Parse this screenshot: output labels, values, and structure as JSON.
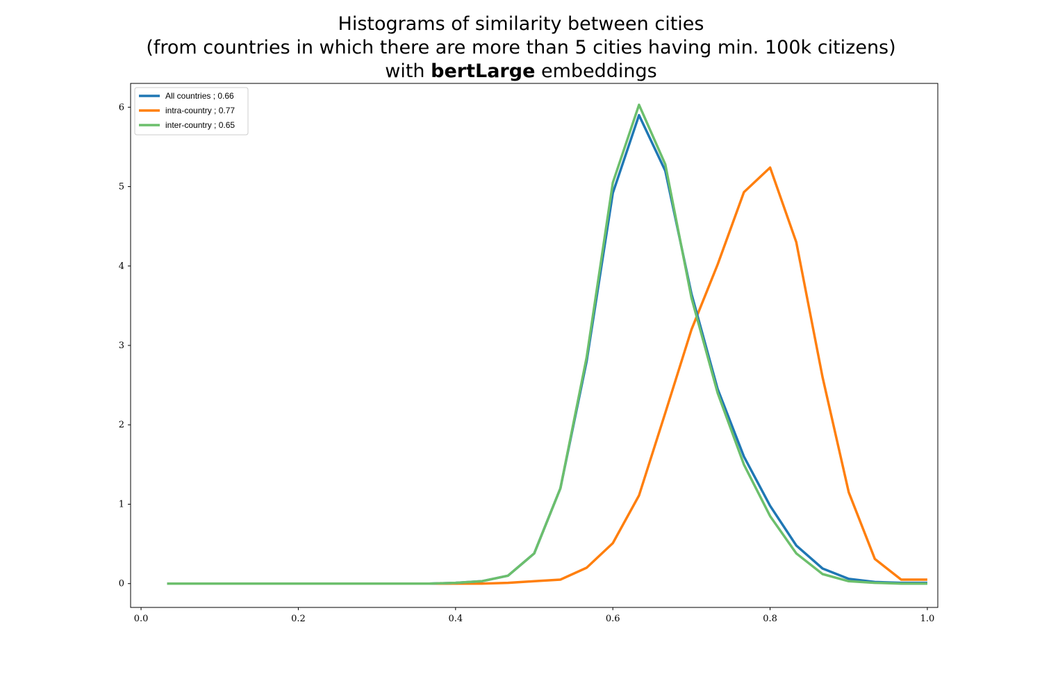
{
  "title": {
    "line1": "Histograms of similarity between cities",
    "line2": "(from countries in which there are more than 5 cities having min. 100k citizens)",
    "line3_prefix": "with ",
    "line3_bold": "bertLarge",
    "line3_suffix": " embeddings"
  },
  "chart_data": {
    "type": "line",
    "xlabel": "",
    "ylabel": "",
    "xlim": [
      -0.0133,
      1.0133
    ],
    "ylim": [
      -0.3,
      6.3
    ],
    "xticks": [
      0.0,
      0.2,
      0.4,
      0.6,
      0.8,
      1.0
    ],
    "xtick_labels": [
      "0.0",
      "0.2",
      "0.4",
      "0.6",
      "0.8",
      "1.0"
    ],
    "yticks": [
      0,
      1,
      2,
      3,
      4,
      5,
      6
    ],
    "ytick_labels": [
      "0",
      "1",
      "2",
      "3",
      "4",
      "5",
      "6"
    ],
    "grid": false,
    "legend_position": "top-left",
    "x": [
      0.0333,
      0.0667,
      0.1,
      0.1333,
      0.1667,
      0.2,
      0.2333,
      0.2667,
      0.3,
      0.3333,
      0.3667,
      0.4,
      0.4333,
      0.4667,
      0.5,
      0.5333,
      0.5667,
      0.6,
      0.6333,
      0.6667,
      0.7,
      0.7333,
      0.7667,
      0.8,
      0.8333,
      0.8667,
      0.9,
      0.9333,
      0.9667,
      1.0
    ],
    "series": [
      {
        "name": "All countries ; 0.66",
        "color": "#1f77b4",
        "values": [
          0,
          0,
          0,
          0,
          0,
          0,
          0,
          0,
          0,
          0,
          0,
          0.01,
          0.03,
          0.1,
          0.38,
          1.2,
          2.8,
          4.92,
          5.9,
          5.2,
          3.65,
          2.45,
          1.6,
          0.98,
          0.48,
          0.19,
          0.06,
          0.02,
          0.01,
          0.01
        ]
      },
      {
        "name": "intra-country ; 0.77",
        "color": "#ff7f0e",
        "values": [
          0,
          0,
          0,
          0,
          0,
          0,
          0,
          0,
          0,
          0,
          0,
          0,
          0,
          0.01,
          0.03,
          0.05,
          0.2,
          0.51,
          1.11,
          2.15,
          3.2,
          4.02,
          4.93,
          5.24,
          4.3,
          2.6,
          1.15,
          0.31,
          0.05,
          0.05
        ]
      },
      {
        "name": "inter-country ; 0.65",
        "color": "#6cbf6c",
        "values": [
          0,
          0,
          0,
          0,
          0,
          0,
          0,
          0,
          0,
          0,
          0,
          0.01,
          0.03,
          0.1,
          0.38,
          1.2,
          2.85,
          5.05,
          6.03,
          5.28,
          3.6,
          2.4,
          1.5,
          0.85,
          0.38,
          0.12,
          0.03,
          0.01,
          0,
          0
        ]
      }
    ]
  }
}
